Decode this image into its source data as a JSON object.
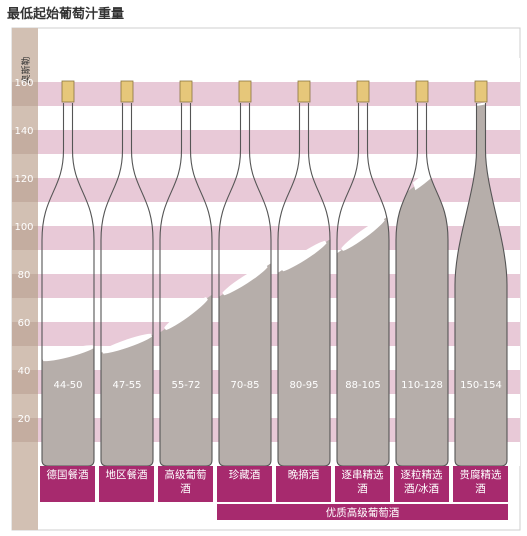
{
  "chart_data": {
    "type": "bar",
    "title": "最低起始葡萄汁重量",
    "ylabel": "奥斯勒",
    "ylim": [
      0,
      175
    ],
    "yticks": [
      20,
      40,
      60,
      80,
      100,
      120,
      140,
      160
    ],
    "grid": true,
    "categories": [
      "德国餐酒",
      "地区餐酒",
      "高级葡萄酒",
      "珍藏酒",
      "晚摘酒",
      "逐串精选酒",
      "逐粒精选酒/冰酒",
      "贵腐精选酒"
    ],
    "ranges": [
      [
        44,
        50
      ],
      [
        47,
        55
      ],
      [
        55,
        72
      ],
      [
        70,
        85
      ],
      [
        80,
        95
      ],
      [
        88,
        105
      ],
      [
        110,
        128
      ],
      [
        150,
        154
      ]
    ],
    "range_labels": [
      "44-50",
      "47-55",
      "55-72",
      "70-85",
      "80-95",
      "88-105",
      "110-128",
      "150-154"
    ],
    "category_label_lines": [
      [
        "德国餐酒"
      ],
      [
        "地区餐酒"
      ],
      [
        "高级葡萄",
        "酒"
      ],
      [
        "珍藏酒"
      ],
      [
        "晚摘酒"
      ],
      [
        "逐串精选",
        "酒"
      ],
      [
        "逐粒精选",
        "酒/冰酒"
      ],
      [
        "贵腐精选",
        "酒"
      ]
    ],
    "group_label": "优质高级葡萄酒",
    "group_from_index": 3
  },
  "colors": {
    "magenta": "#a72a6e",
    "pink_band": "#e8c9d7",
    "axis_bg": "#d2c0b3",
    "wine": "#b6aeaa",
    "bottle_line": "#555555",
    "cork": "#e6c77a"
  }
}
